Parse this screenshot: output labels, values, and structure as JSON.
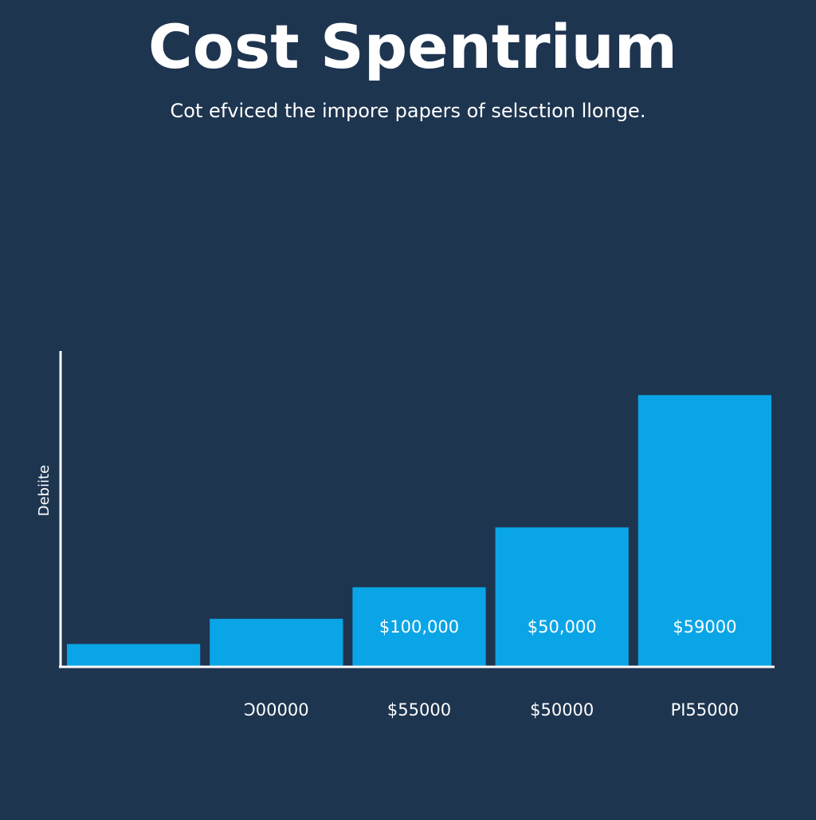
{
  "chart_data": {
    "type": "bar",
    "title": "Cost Spentrium",
    "subtitle": "Cot efviced the impore papers of selsction llonge.",
    "y_label": "Debiite",
    "categories": [
      null,
      "Ɔ00000",
      "$55000",
      "$50000",
      "PI55000"
    ],
    "values": [
      7,
      15,
      25,
      44,
      86
    ],
    "bar_labels": [
      null,
      null,
      "$100,000",
      "$50,000",
      "$59000"
    ],
    "color": "#0aa5e6",
    "ylim": [
      0,
      100
    ]
  }
}
